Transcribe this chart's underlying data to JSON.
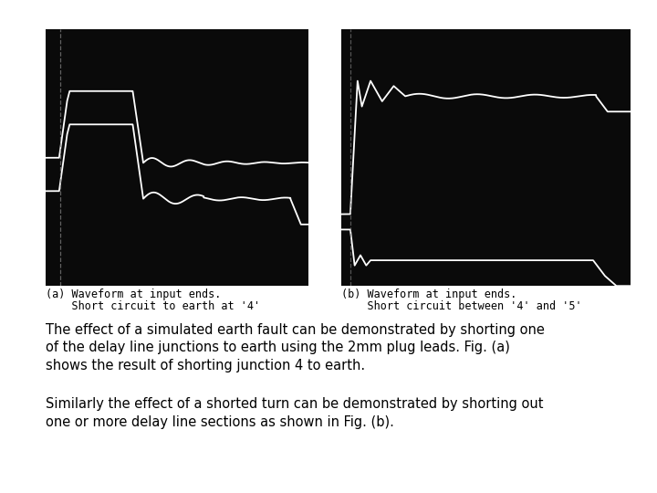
{
  "background_color": "#ffffff",
  "panel_bg": "#0a0a0a",
  "waveform_color": "#ffffff",
  "fig_width": 7.2,
  "fig_height": 5.4,
  "caption_a_line1": "(a) Waveform at input ends.",
  "caption_a_line2": "    Short circuit to earth at '4'",
  "caption_b_line1": "(b) Waveform at input ends.",
  "caption_b_line2": "    Short circuit between '4' and '5'",
  "text_para1": "The effect of a simulated earth fault can be demonstrated by shorting one\nof the delay line junctions to earth using the 2mm plug leads. Fig. (a)\nshows the result of shorting junction 4 to earth.",
  "text_para2": "Similarly the effect of a shorted turn can be demonstrated by shorting out\none or more delay line sections as shown in Fig. (b).",
  "text_fontsize": 10.5,
  "caption_fontsize": 8.5
}
